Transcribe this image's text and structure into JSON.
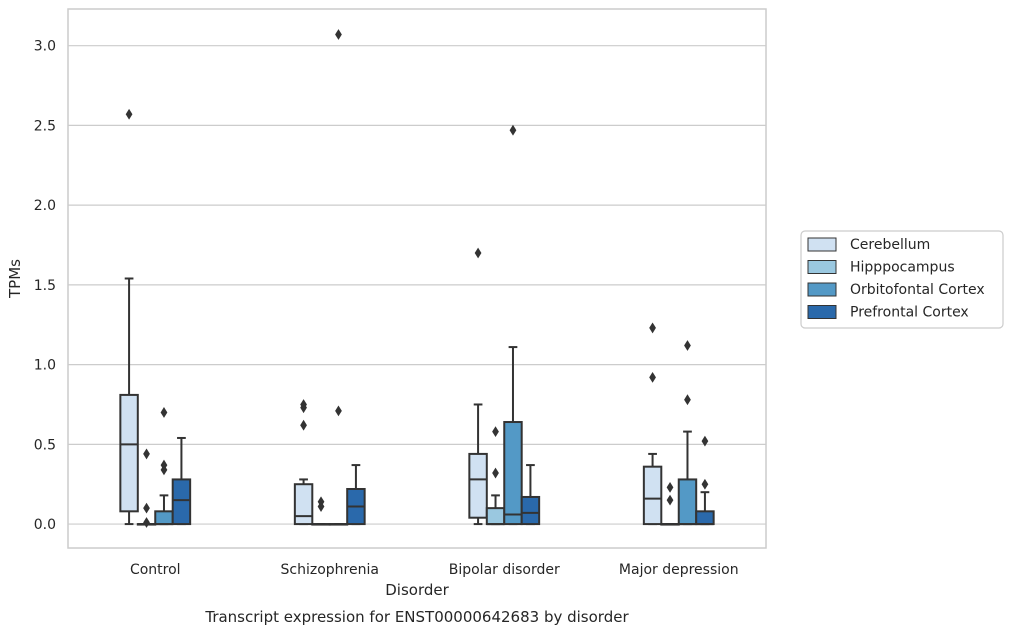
{
  "chart_data": {
    "type": "box",
    "title": "",
    "caption": "Transcript expression for ENST00000642683 by disorder",
    "xlabel": "Disorder",
    "ylabel": "TPMs",
    "ylim": [
      -0.15,
      3.23
    ],
    "yticks": [
      0.0,
      0.5,
      1.0,
      1.5,
      2.0,
      2.5,
      3.0
    ],
    "ytick_labels": [
      "0.0",
      "0.5",
      "1.0",
      "1.5",
      "2.0",
      "2.5",
      "3.0"
    ],
    "grid": "horizontal",
    "legend_position": "right",
    "categories": [
      "Control",
      "Schizophrenia",
      "Bipolar disorder",
      "Major depression"
    ],
    "series": [
      {
        "name": "Cerebellum",
        "color": "#d0e1f2",
        "boxes": [
          {
            "whislo": 0.0,
            "q1": 0.08,
            "med": 0.5,
            "q3": 0.81,
            "whishi": 1.54,
            "fliers": [
              2.57
            ]
          },
          {
            "whislo": 0.0,
            "q1": 0.0,
            "med": 0.05,
            "q3": 0.25,
            "whishi": 0.28,
            "fliers": [
              0.62,
              0.73,
              0.75
            ]
          },
          {
            "whislo": 0.0,
            "q1": 0.04,
            "med": 0.28,
            "q3": 0.44,
            "whishi": 0.75,
            "fliers": [
              1.7
            ]
          },
          {
            "whislo": 0.0,
            "q1": 0.0,
            "med": 0.16,
            "q3": 0.36,
            "whishi": 0.44,
            "fliers": [
              0.92,
              1.23
            ]
          }
        ]
      },
      {
        "name": "Hipppocampus",
        "color": "#9ac8e0",
        "boxes": [
          {
            "whislo": 0.0,
            "q1": 0.0,
            "med": 0.0,
            "q3": 0.0,
            "whishi": 0.0,
            "fliers": [
              0.01,
              0.1,
              0.44
            ]
          },
          {
            "whislo": 0.0,
            "q1": 0.0,
            "med": 0.0,
            "q3": 0.0,
            "whishi": 0.0,
            "fliers": [
              0.11,
              0.14
            ]
          },
          {
            "whislo": 0.0,
            "q1": 0.0,
            "med": 0.0,
            "q3": 0.1,
            "whishi": 0.18,
            "fliers": [
              0.32,
              0.58
            ]
          },
          {
            "whislo": 0.0,
            "q1": 0.0,
            "med": 0.0,
            "q3": 0.0,
            "whishi": 0.0,
            "fliers": [
              0.15,
              0.23
            ]
          }
        ]
      },
      {
        "name": "Orbitofontal Cortex",
        "color": "#5399c6",
        "boxes": [
          {
            "whislo": 0.0,
            "q1": 0.0,
            "med": 0.0,
            "q3": 0.08,
            "whishi": 0.18,
            "fliers": [
              0.34,
              0.37,
              0.7
            ]
          },
          {
            "whislo": 0.0,
            "q1": 0.0,
            "med": 0.0,
            "q3": 0.0,
            "whishi": 0.0,
            "fliers": [
              0.71,
              3.07
            ]
          },
          {
            "whislo": 0.0,
            "q1": 0.0,
            "med": 0.06,
            "q3": 0.64,
            "whishi": 1.11,
            "fliers": [
              2.47
            ]
          },
          {
            "whislo": 0.0,
            "q1": 0.0,
            "med": 0.0,
            "q3": 0.28,
            "whishi": 0.58,
            "fliers": [
              0.78,
              1.12
            ]
          }
        ]
      },
      {
        "name": "Prefrontal Cortex",
        "color": "#2a69ab",
        "boxes": [
          {
            "whislo": 0.0,
            "q1": 0.0,
            "med": 0.15,
            "q3": 0.28,
            "whishi": 0.54,
            "fliers": []
          },
          {
            "whislo": 0.0,
            "q1": 0.0,
            "med": 0.11,
            "q3": 0.22,
            "whishi": 0.37,
            "fliers": []
          },
          {
            "whislo": 0.0,
            "q1": 0.0,
            "med": 0.07,
            "q3": 0.17,
            "whishi": 0.37,
            "fliers": []
          },
          {
            "whislo": 0.0,
            "q1": 0.0,
            "med": 0.0,
            "q3": 0.08,
            "whishi": 0.2,
            "fliers": [
              0.25,
              0.52
            ]
          }
        ]
      }
    ]
  },
  "style": {
    "grid_color": "#cccccc",
    "frame_color": "#cccccc",
    "line_color": "#333333",
    "flier_color": "#333333"
  }
}
